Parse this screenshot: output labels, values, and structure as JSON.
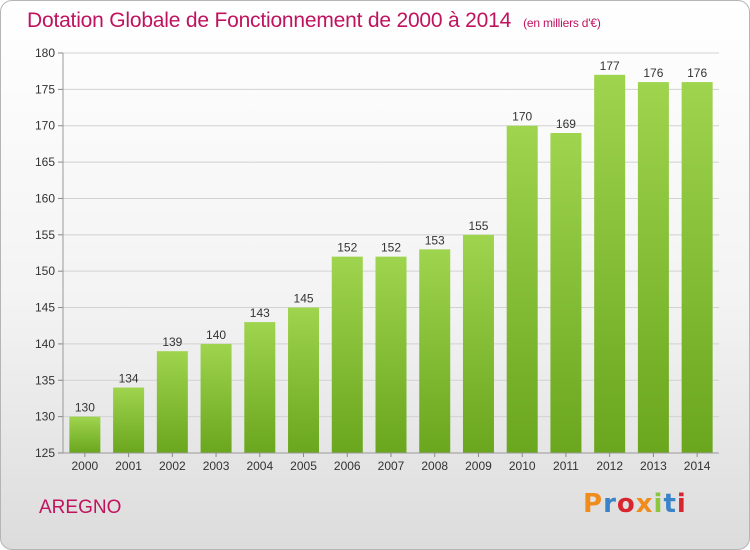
{
  "header": {
    "title": "Dotation Globale de Fonctionnement de 2000 à 2014",
    "subtitle": "(en milliers d'€)"
  },
  "footer": {
    "commune": "AREGNO",
    "logo_text": "Proxiti",
    "logo_colors": [
      "#f08c1c",
      "#3a83c8",
      "#d8262e",
      "#f08c1c",
      "#8cc63e",
      "#3a83c8",
      "#d8262e"
    ]
  },
  "colors": {
    "title": "#c0135f",
    "bar_light": "#9fd44e",
    "bar_dark": "#6aa61e"
  },
  "chart_data": {
    "type": "bar",
    "categories": [
      "2000",
      "2001",
      "2002",
      "2003",
      "2004",
      "2005",
      "2006",
      "2007",
      "2008",
      "2009",
      "2010",
      "2011",
      "2012",
      "2013",
      "2014"
    ],
    "values": [
      130,
      134,
      139,
      140,
      143,
      145,
      152,
      152,
      153,
      155,
      170,
      169,
      177,
      176,
      176
    ],
    "title": "Dotation Globale de Fonctionnement de 2000 à 2014",
    "subtitle": "(en milliers d'€)",
    "ylim": [
      125,
      180
    ],
    "yticks": [
      125,
      130,
      135,
      140,
      145,
      150,
      155,
      160,
      165,
      170,
      175,
      180
    ],
    "grid": true,
    "data_labels": true
  }
}
